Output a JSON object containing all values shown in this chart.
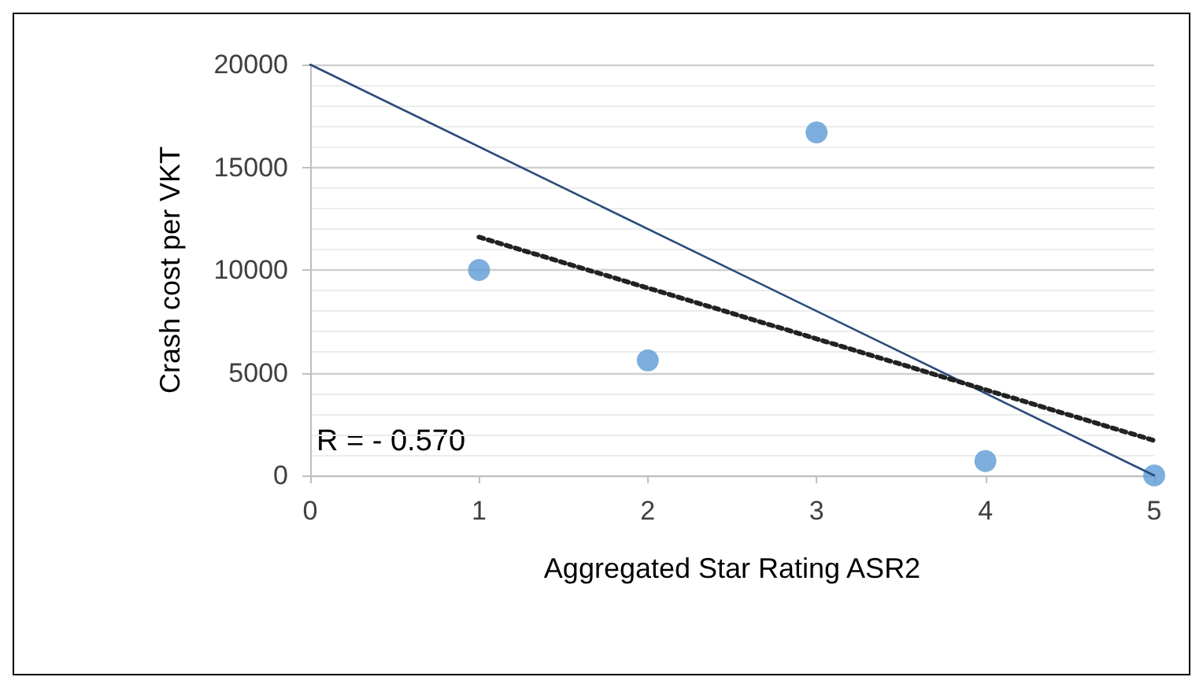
{
  "chart_data": {
    "type": "scatter",
    "xlabel": "Aggregated Star Rating ASR2",
    "ylabel": "Crash cost per VKT",
    "annotations": [
      "R = - 0.570"
    ],
    "series": [
      {
        "color": "#5b9bd5",
        "marker": "circle",
        "x": [
          1,
          2,
          3,
          4,
          5
        ],
        "values": [
          10000,
          5600,
          16700,
          700,
          0
        ]
      },
      {
        "type": "line",
        "color": "#2a4d7a",
        "line_style": "solid",
        "marker": "none",
        "x": [
          0,
          5
        ],
        "values": [
          20000,
          0
        ]
      },
      {
        "type": "line",
        "color": "#222222",
        "line_style": "dotted",
        "marker": "none",
        "x": [
          1,
          5
        ],
        "values": [
          11600,
          1700
        ]
      }
    ],
    "xlim": [
      0,
      5
    ],
    "xticks": [
      0,
      1,
      2,
      3,
      4,
      5
    ],
    "ylim": [
      0,
      20000
    ],
    "yticks": [
      0,
      5000,
      10000,
      15000,
      20000
    ],
    "grid": "y"
  }
}
